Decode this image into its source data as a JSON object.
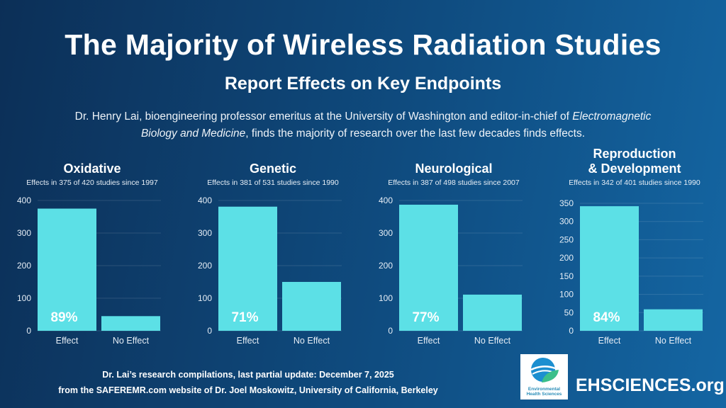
{
  "header": {
    "title": "The Majority of Wireless Radiation Studies",
    "subtitle": "Report Effects on Key Endpoints",
    "description_part1": "Dr. Henry Lai, bioengineering professor emeritus at the University of Washington and editor-in-chief of ",
    "description_italic": "Electromagnetic Biology and Medicine",
    "description_part2": ", finds the majority of research over the last few decades finds effects."
  },
  "colors": {
    "bar": "#5ce0e6",
    "background_start": "#0c2f57",
    "background_end": "#1466a3"
  },
  "chart_data": [
    {
      "type": "bar",
      "title": "Oxidative",
      "subtitle": "Effects in 375 of 420 studies since 1997",
      "categories": [
        "Effect",
        "No Effect"
      ],
      "values": [
        375,
        45
      ],
      "ylim": [
        0,
        400
      ],
      "yticks": [
        0,
        100,
        200,
        300,
        400
      ],
      "annotation": "89%",
      "grid": true
    },
    {
      "type": "bar",
      "title": "Genetic",
      "subtitle": "Effects in 381 of 531 studies since 1990",
      "categories": [
        "Effect",
        "No Effect"
      ],
      "values": [
        381,
        150
      ],
      "ylim": [
        0,
        400
      ],
      "yticks": [
        0,
        100,
        200,
        300,
        400
      ],
      "annotation": "71%",
      "grid": true
    },
    {
      "type": "bar",
      "title": "Neurological",
      "subtitle": "Effects in 387 of 498 studies since 2007",
      "categories": [
        "Effect",
        "No Effect"
      ],
      "values": [
        387,
        111
      ],
      "ylim": [
        0,
        400
      ],
      "yticks": [
        0,
        100,
        200,
        300,
        400
      ],
      "annotation": "77%",
      "grid": true
    },
    {
      "type": "bar",
      "title": "Reproduction\n& Development",
      "title_lines": [
        "Reproduction",
        "& Development"
      ],
      "subtitle": "Effects in 342 of 401 studies since 1990",
      "categories": [
        "Effect",
        "No Effect"
      ],
      "values": [
        342,
        59
      ],
      "ylim": [
        0,
        350
      ],
      "yticks": [
        0,
        50,
        100,
        150,
        200,
        250,
        300,
        350
      ],
      "annotation": "84%",
      "grid": true
    }
  ],
  "footer": {
    "line1": "Dr. Lai’s research compilations, last partial update: December 7, 2025",
    "line2": "from the SAFEREMR.com website of Dr. Joel Moskowitz, University of California, Berkeley",
    "logo_line1": "Environmental",
    "logo_line2": "Health Sciences",
    "site": "EHSCIENCES.org"
  }
}
